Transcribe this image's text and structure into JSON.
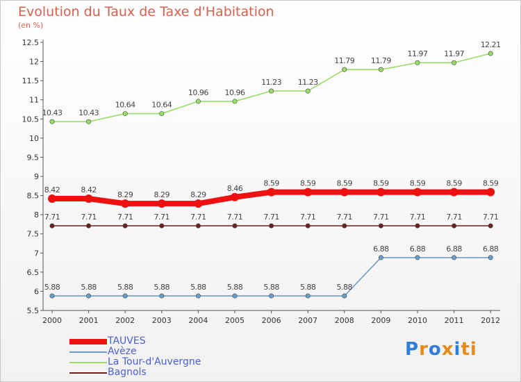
{
  "header": {
    "title": "Evolution du Taux de Taxe d'Habitation",
    "unit": "(en %)"
  },
  "chart_data": {
    "type": "line",
    "title": "Evolution du Taux de Taxe d'Habitation",
    "ylabel": "(en %)",
    "xlabel": "",
    "x": [
      "2000",
      "2001",
      "2002",
      "2003",
      "2004",
      "2005",
      "2006",
      "2007",
      "2008",
      "2009",
      "2010",
      "2011",
      "2012"
    ],
    "ylim": [
      5.5,
      12.5
    ],
    "yticks": [
      "5.5",
      "6",
      "6.5",
      "7",
      "7.5",
      "8",
      "8.5",
      "9",
      "9.5",
      "10",
      "10.5",
      "11",
      "11.5",
      "12",
      "12.5"
    ],
    "grid": false,
    "legend_position": "bottom-left",
    "series": [
      {
        "name": "TAUVES",
        "color": "#ee1111",
        "values": [
          8.42,
          8.42,
          8.29,
          8.29,
          8.29,
          8.46,
          8.59,
          8.59,
          8.59,
          8.59,
          8.59,
          8.59,
          8.59
        ],
        "labels": [
          "8.42",
          "8.42",
          "8.29",
          "8.29",
          "8.29",
          "8.46",
          "8.59",
          "8.59",
          "8.59",
          "8.59",
          "8.59",
          "8.59",
          "8.59"
        ]
      },
      {
        "name": "Avèze",
        "color": "#6b9dc9",
        "values": [
          5.88,
          5.88,
          5.88,
          5.88,
          5.88,
          5.88,
          5.88,
          5.88,
          5.88,
          6.88,
          6.88,
          6.88,
          6.88
        ],
        "labels": [
          "5.88",
          "5.88",
          "5.88",
          "5.88",
          "5.88",
          "5.88",
          "5.88",
          "5.88",
          "5.88",
          "6.88",
          "6.88",
          "6.88",
          "6.88"
        ]
      },
      {
        "name": "La Tour-d'Auvergne",
        "color": "#99dd66",
        "values": [
          10.43,
          10.43,
          10.64,
          10.64,
          10.96,
          10.96,
          11.23,
          11.23,
          11.79,
          11.79,
          11.97,
          11.97,
          12.21
        ],
        "labels": [
          "10.43",
          "10.43",
          "10.64",
          "10.64",
          "10.96",
          "10.96",
          "11.23",
          "11.23",
          "11.79",
          "11.79",
          "11.97",
          "11.97",
          "12.21"
        ]
      },
      {
        "name": "Bagnols",
        "color": "#6b1f1f",
        "values": [
          7.71,
          7.71,
          7.71,
          7.71,
          7.71,
          7.71,
          7.71,
          7.71,
          7.71,
          7.71,
          7.71,
          7.71,
          7.71
        ],
        "labels": [
          "7.71",
          "7.71",
          "7.71",
          "7.71",
          "7.71",
          "7.71",
          "7.71",
          "7.71",
          "7.71",
          "7.71",
          "7.71",
          "7.71",
          "7.71"
        ]
      }
    ]
  },
  "legend": [
    {
      "label": "TAUVES",
      "color": "#ee1111"
    },
    {
      "label": "Avèze",
      "color": "#6b9dc9"
    },
    {
      "label": "La Tour-d'Auvergne",
      "color": "#99dd66"
    },
    {
      "label": "Bagnols",
      "color": "#6b1f1f"
    }
  ],
  "logo": {
    "text": "Proxiti",
    "letters": [
      "P",
      "r",
      "o",
      "x",
      "i",
      "t",
      "i"
    ],
    "letter_colors": [
      "#2f7fd8",
      "#e88a18",
      "#2f7fd8",
      "#e88a18",
      "#2f7fd8",
      "#e88a18",
      "#e88a18"
    ]
  }
}
